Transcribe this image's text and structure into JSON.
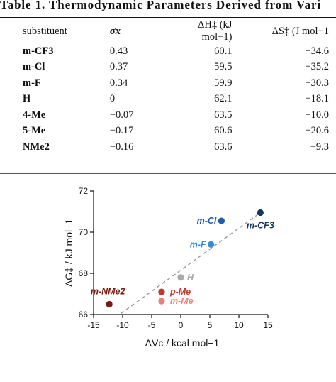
{
  "table": {
    "caption": "Table 1. Thermodynamic Parameters Derived from Vari",
    "headers": [
      "substituent",
      "σx",
      "ΔH‡ (kJ mol−1)",
      "ΔS‡ (J mol−1"
    ],
    "rows": [
      {
        "substituent": "m-CF3",
        "sigma": "0.43",
        "dH": "60.1",
        "dS": "−34.6"
      },
      {
        "substituent": "m-Cl",
        "sigma": "0.37",
        "dH": "59.5",
        "dS": "−35.2"
      },
      {
        "substituent": "m-F",
        "sigma": "0.34",
        "dH": "59.9",
        "dS": "−30.3"
      },
      {
        "substituent": "H",
        "sigma": "0",
        "dH": "62.1",
        "dS": "−18.1"
      },
      {
        "substituent": "4-Me",
        "sigma": "−0.07",
        "dH": "63.5",
        "dS": "−10.0"
      },
      {
        "substituent": "5-Me",
        "sigma": "−0.17",
        "dH": "60.6",
        "dS": "−20.6"
      },
      {
        "substituent": "NMe2",
        "sigma": "−0.16",
        "dH": "63.6",
        "dS": "−9.3"
      }
    ]
  },
  "chart_data": {
    "type": "scatter",
    "xlabel": "ΔVc / kcal mol−1",
    "ylabel": "ΔG‡ / kJ mol−1",
    "xlim": [
      -15,
      15
    ],
    "ylim": [
      66,
      72
    ],
    "xticks": [
      "-15",
      "-10",
      "-5",
      "0",
      "5",
      "10",
      "15"
    ],
    "yticks": [
      "66",
      "68",
      "70",
      "72"
    ],
    "points": [
      {
        "label": "m-CF3",
        "x": 13.7,
        "y": 70.95,
        "color": "#17375e"
      },
      {
        "label": "m-Cl",
        "x": 7.0,
        "y": 70.55,
        "color": "#1f5fa8"
      },
      {
        "label": "m-F",
        "x": 5.2,
        "y": 69.4,
        "color": "#3b8ad6"
      },
      {
        "label": "H",
        "x": 0.0,
        "y": 67.8,
        "color": "#a9a9a9"
      },
      {
        "label": "p-Me",
        "x": -3.3,
        "y": 67.1,
        "color": "#c0392b"
      },
      {
        "label": "m-Me",
        "x": -3.3,
        "y": 66.65,
        "color": "#e8837a"
      },
      {
        "label": "m-NMe2",
        "x": -12.3,
        "y": 66.5,
        "color": "#7a1a12"
      }
    ],
    "fit_line": {
      "x": [
        -10.3,
        13.7
      ],
      "y": [
        66.05,
        70.95
      ],
      "style": "dashed",
      "color": "#999999"
    },
    "grid": false,
    "legend": "none"
  }
}
